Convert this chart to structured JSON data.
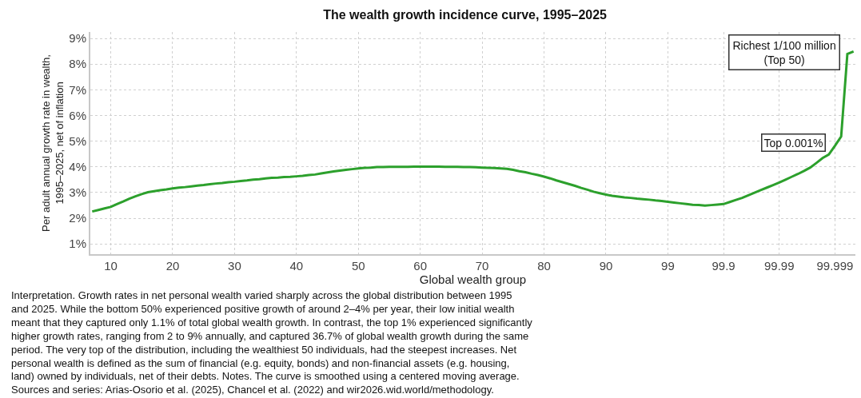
{
  "chart_data": {
    "type": "line",
    "title": "The wealth growth incidence curve, 1995–2025",
    "xlabel": "Global wealth group",
    "ylabel": "Per adult annual growth rate in wealth,\n1995–2025, net of inflation",
    "categories": [
      null,
      null,
      null,
      "10",
      null,
      null,
      null,
      null,
      null,
      null,
      null,
      null,
      null,
      "20",
      null,
      null,
      null,
      null,
      null,
      null,
      null,
      null,
      null,
      "30",
      null,
      null,
      null,
      null,
      null,
      null,
      null,
      null,
      null,
      "40",
      null,
      null,
      null,
      null,
      null,
      null,
      null,
      null,
      null,
      "50",
      null,
      null,
      null,
      null,
      null,
      null,
      null,
      null,
      null,
      "60",
      null,
      null,
      null,
      null,
      null,
      null,
      null,
      null,
      null,
      "70",
      null,
      null,
      null,
      null,
      null,
      null,
      null,
      null,
      null,
      "80",
      null,
      null,
      null,
      null,
      null,
      null,
      null,
      null,
      null,
      "90",
      null,
      null,
      null,
      null,
      null,
      null,
      null,
      null,
      null,
      "99",
      null,
      null,
      null,
      null,
      null,
      null,
      null,
      null,
      "99.9",
      null,
      null,
      null,
      null,
      null,
      null,
      null,
      null,
      "99.99",
      null,
      null,
      null,
      null,
      null,
      null,
      null,
      null,
      "99.999",
      null,
      null,
      null
    ],
    "series": [
      {
        "color": "#2ca02c",
        "values": [
          2.26,
          2.32,
          2.38,
          2.44,
          2.55,
          2.65,
          2.76,
          2.85,
          2.94,
          3.01,
          3.05,
          3.09,
          3.12,
          3.16,
          3.19,
          3.21,
          3.24,
          3.27,
          3.29,
          3.32,
          3.35,
          3.37,
          3.4,
          3.42,
          3.45,
          3.47,
          3.5,
          3.52,
          3.55,
          3.57,
          3.58,
          3.6,
          3.61,
          3.63,
          3.65,
          3.68,
          3.7,
          3.74,
          3.78,
          3.82,
          3.85,
          3.88,
          3.91,
          3.94,
          3.96,
          3.97,
          3.99,
          3.99,
          4.0,
          4.0,
          4.0,
          4.0,
          4.01,
          4.01,
          4.01,
          4.01,
          4.01,
          4.0,
          4.0,
          4.0,
          3.99,
          3.99,
          3.98,
          3.97,
          3.96,
          3.95,
          3.94,
          3.92,
          3.88,
          3.83,
          3.79,
          3.73,
          3.68,
          3.62,
          3.55,
          3.47,
          3.4,
          3.33,
          3.26,
          3.18,
          3.11,
          3.03,
          2.97,
          2.92,
          2.87,
          2.84,
          2.81,
          2.79,
          2.76,
          2.74,
          2.72,
          2.69,
          2.67,
          2.64,
          2.61,
          2.58,
          2.55,
          2.52,
          2.51,
          2.49,
          2.51,
          2.53,
          2.55,
          2.63,
          2.71,
          2.79,
          2.89,
          2.99,
          3.09,
          3.19,
          3.29,
          3.39,
          3.5,
          3.61,
          3.72,
          3.84,
          3.97,
          4.15,
          4.34,
          4.48,
          4.82,
          5.18,
          8.39,
          8.49
        ]
      }
    ],
    "ylim": [
      0.6,
      9.25
    ],
    "yticks": [
      {
        "value": 1,
        "label": "1%"
      },
      {
        "value": 2,
        "label": "2%"
      },
      {
        "value": 3,
        "label": "3%"
      },
      {
        "value": 4,
        "label": "4%"
      },
      {
        "value": 5,
        "label": "5%"
      },
      {
        "value": 6,
        "label": "6%"
      },
      {
        "value": 7,
        "label": "7%"
      },
      {
        "value": 8,
        "label": "8%"
      },
      {
        "value": 9,
        "label": "9%"
      }
    ],
    "grid": true,
    "marker": "none",
    "line_style": "solid",
    "annotations": [
      "Richest 1/100 million\n(Top 50)",
      "Top 0.001%",
      "Interpretation. Growth rates in net personal wealth varied sharply across the global distribution between 1995\nand 2025. While the bottom 50% experienced positive growth of around 2–4% per year, their low initial wealth\nmeant that they captured only 1.1% of total global wealth growth. In contrast, the top 1% experienced significantly\nhigher growth rates, ranging from 2 to 9% annually, and captured 36.7% of global wealth growth during the same\nperiod. The very top of the distribution, including the wealthiest 50 individuals, had the steepest increases. Net\npersonal wealth is defined as the sum of financial (e.g. equity, bonds) and non-financial assets (e.g. housing,\nland) owned by individuals, net of their debts. Notes. The curve is smoothed using a centered moving average.",
      "Sources and series: Arias-Osorio et al. (2025), Chancel et al. (2022) and wir2026.wid.world/methodology."
    ]
  }
}
